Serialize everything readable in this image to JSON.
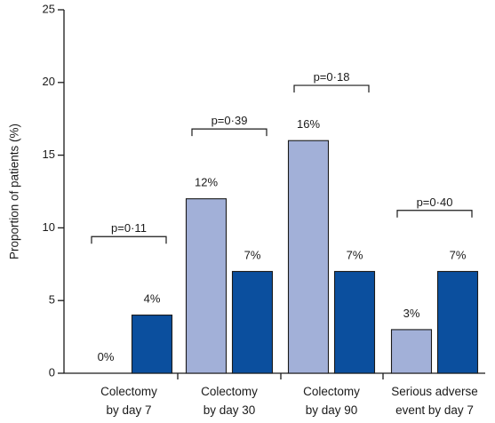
{
  "chart_data": {
    "type": "bar",
    "ylabel": "Proportion of patients (%)",
    "ylim": [
      0,
      25
    ],
    "yticks": [
      0,
      5,
      10,
      15,
      20,
      25
    ],
    "grid": false,
    "categories": [
      [
        "Colectomy",
        "by day 7"
      ],
      [
        "Colectomy",
        "by day 30"
      ],
      [
        "Colectomy",
        "by day 90"
      ],
      [
        "Serious adverse",
        "event by day 7"
      ]
    ],
    "series": [
      {
        "color": "#a2b0d8",
        "values": [
          0,
          12,
          16,
          3
        ],
        "labels": [
          "0%",
          "12%",
          "16%",
          "3%"
        ]
      },
      {
        "color": "#0b4f9e",
        "values": [
          4,
          7,
          7,
          7
        ],
        "labels": [
          "4%",
          "7%",
          "7%",
          "7%"
        ]
      }
    ],
    "pvalues": [
      "p=0·11",
      "p=0·39",
      "p=0·18",
      "p=0·40"
    ],
    "bracket_levels": [
      9.4,
      16.8,
      19.8,
      11.2
    ]
  }
}
